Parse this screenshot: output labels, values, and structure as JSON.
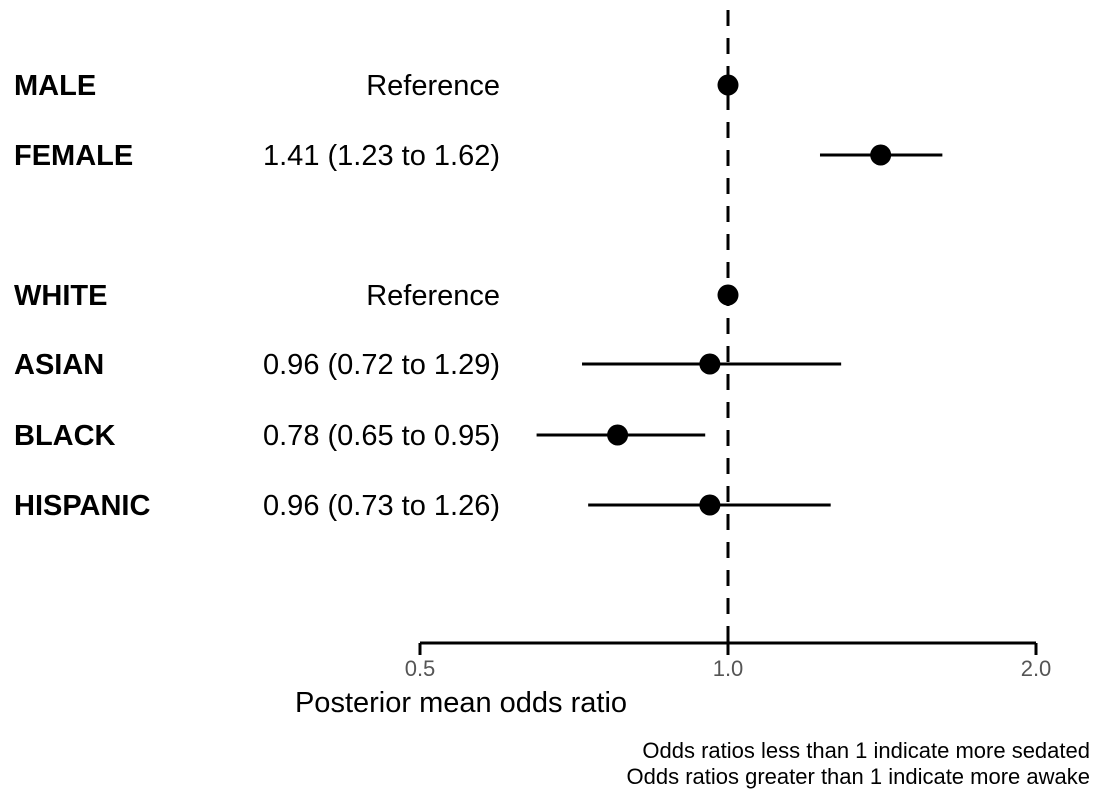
{
  "chart_data": {
    "type": "forest",
    "x_scale": "log",
    "xlim": [
      0.5,
      2.0
    ],
    "xticks": [
      0.5,
      1.0,
      2.0
    ],
    "xtick_labels": [
      "0.5",
      "1.0",
      "2.0"
    ],
    "reference_line": 1.0,
    "xlabel": "Posterior mean odds ratio",
    "rows": [
      {
        "label": "MALE",
        "estimate_text": "Reference",
        "or": 1.0,
        "lower": null,
        "upper": null
      },
      {
        "label": "FEMALE",
        "estimate_text": "1.41 (1.23 to 1.62)",
        "or": 1.41,
        "lower": 1.23,
        "upper": 1.62
      },
      {
        "label": "WHITE",
        "estimate_text": "Reference",
        "or": 1.0,
        "lower": null,
        "upper": null
      },
      {
        "label": "ASIAN",
        "estimate_text": "0.96 (0.72 to 1.29)",
        "or": 0.96,
        "lower": 0.72,
        "upper": 1.29
      },
      {
        "label": "BLACK",
        "estimate_text": "0.78 (0.65 to 0.95)",
        "or": 0.78,
        "lower": 0.65,
        "upper": 0.95
      },
      {
        "label": "HISPANIC",
        "estimate_text": "0.96 (0.73 to 1.26)",
        "or": 0.96,
        "lower": 0.73,
        "upper": 1.26
      }
    ],
    "notes": [
      "Odds ratios less than 1 indicate more sedated",
      "Odds ratios greater than 1 indicate more awake"
    ],
    "colors": {
      "marks": "#000000",
      "tick_labels": "#555555"
    }
  }
}
